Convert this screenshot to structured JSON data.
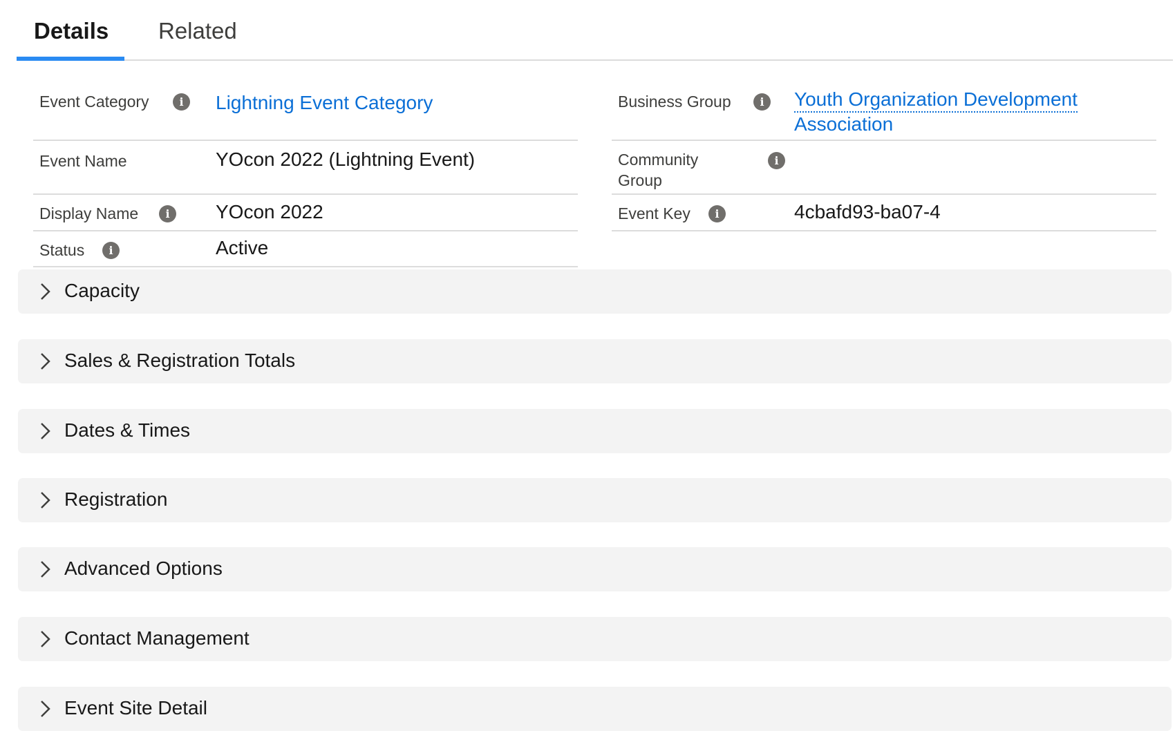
{
  "tabs": [
    {
      "label": "Details",
      "active": true
    },
    {
      "label": "Related",
      "active": false
    }
  ],
  "accent_color": "#2a8bf2",
  "link_color": "#0b6fd6",
  "fields_left": [
    {
      "label": "Event Category",
      "value": "Lightning Event Category",
      "info": true,
      "is_link": true
    },
    {
      "label": "Event Name",
      "value": "YOcon 2022 (Lightning Event)",
      "info": false
    },
    {
      "label": "Display Name",
      "value": "YOcon 2022",
      "info": true
    },
    {
      "label": "Status",
      "value": "Active",
      "info": true
    }
  ],
  "fields_right": [
    {
      "label": "Business Group",
      "value_line1": "Youth Organization Development",
      "value_line2": "Association",
      "info": true,
      "is_link": true
    },
    {
      "label_line1": "Community",
      "label_line2": "Group",
      "value": "",
      "info": true
    },
    {
      "label": "Event Key",
      "value": "4cbafd93-ba07-4",
      "info": true
    }
  ],
  "info_icon_glyph": "i",
  "sections": [
    {
      "title": "Capacity",
      "expanded": false
    },
    {
      "title": "Sales & Registration Totals",
      "expanded": false
    },
    {
      "title": "Dates & Times",
      "expanded": false
    },
    {
      "title": "Registration",
      "expanded": false
    },
    {
      "title": "Advanced Options",
      "expanded": false
    },
    {
      "title": "Contact Management",
      "expanded": false
    },
    {
      "title": "Event Site Detail",
      "expanded": false
    }
  ]
}
